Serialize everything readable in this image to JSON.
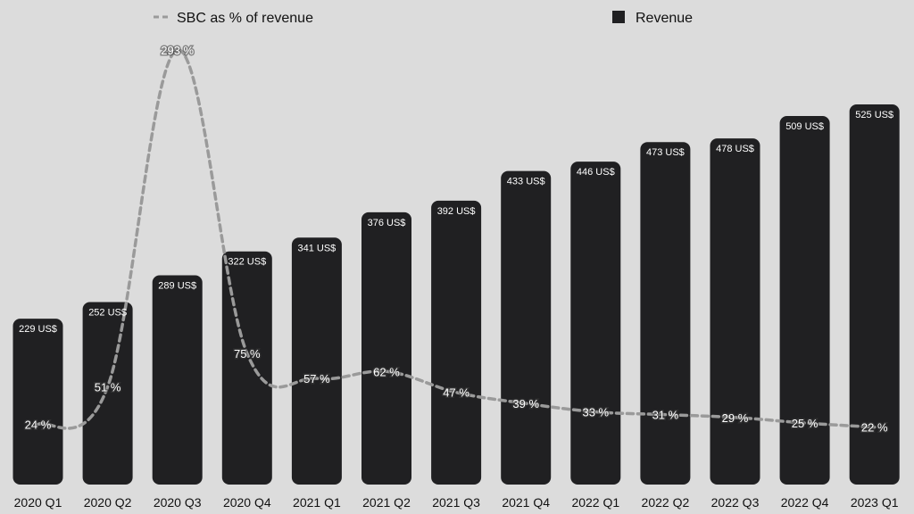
{
  "chart_data": {
    "type": "bar",
    "title": "",
    "xlabel": "",
    "ylabel": "",
    "categories": [
      "2020 Q1",
      "2020 Q2",
      "2020 Q3",
      "2020 Q4",
      "2021 Q1",
      "2021 Q2",
      "2021 Q3",
      "2021 Q4",
      "2022 Q1",
      "2022 Q2",
      "2022 Q3",
      "2022 Q4",
      "2023 Q1"
    ],
    "series": [
      {
        "name": "Revenue",
        "type": "bar",
        "values": [
          229,
          252,
          289,
          322,
          341,
          376,
          392,
          433,
          446,
          473,
          478,
          509,
          525
        ],
        "labels": [
          "229 US$",
          "252 US$",
          "289 US$",
          "322 US$",
          "341 US$",
          "376 US$",
          "392 US$",
          "433 US$",
          "446 US$",
          "473 US$",
          "478 US$",
          "509 US$",
          "525 US$"
        ],
        "color": "#202022"
      },
      {
        "name": "SBC as % of revenue",
        "type": "line",
        "values": [
          24,
          51,
          293,
          75,
          57,
          62,
          47,
          39,
          33,
          31,
          29,
          25,
          22
        ],
        "labels": [
          "24 %",
          "51 %",
          "293 %",
          "75 %",
          "57 %",
          "62 %",
          "47 %",
          "39 %",
          "33 %",
          "31 %",
          "29 %",
          "25 %",
          "22 %"
        ],
        "color": "#9a9a9a",
        "style": "dashed"
      }
    ],
    "legend": [
      {
        "name": "SBC as % of revenue",
        "symbol": "dashed-line",
        "position": "top-left"
      },
      {
        "name": "Revenue",
        "symbol": "square",
        "position": "top-right"
      }
    ],
    "grid": false
  }
}
